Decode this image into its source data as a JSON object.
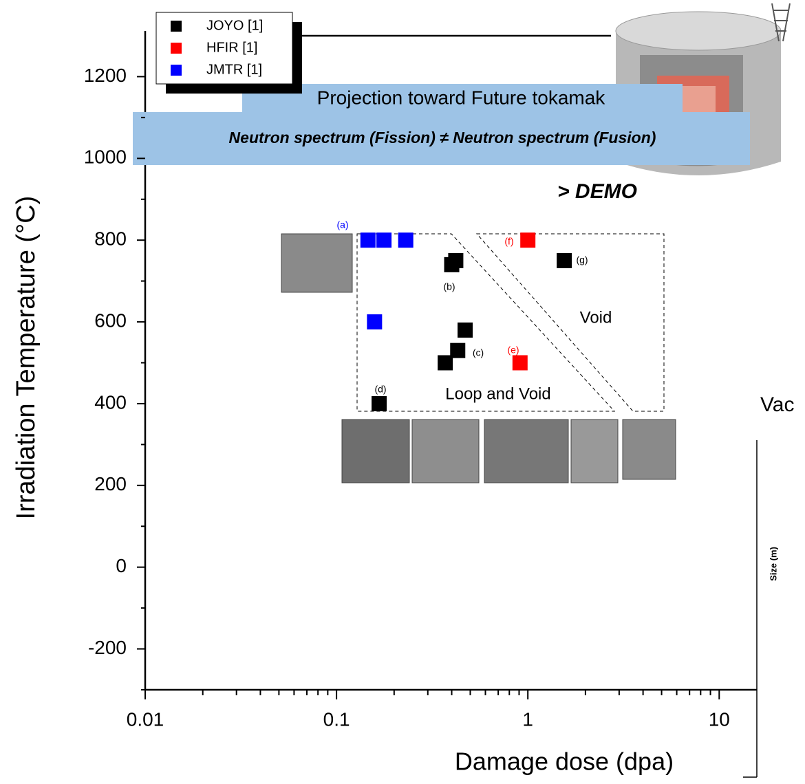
{
  "chart_data": {
    "type": "scatter",
    "title": "Projection toward Future tokamak",
    "subtitle": "Neutron spectrum (Fission) ≠ Neutron spectrum (Fusion)",
    "annotation": "> DEMO",
    "region_labels": [
      "Void",
      "Loop and Void"
    ],
    "point_labels": [
      "(a)",
      "(b)",
      "(c)",
      "(d)",
      "(e)",
      "(f)",
      "(g)"
    ],
    "x_label": "Damage dose (dpa)",
    "y_label": "Irradiation Temperature (°C)",
    "log_x": true,
    "xlim": [
      0.01,
      20
    ],
    "ylim": [
      -300,
      1300
    ],
    "xticks": [
      0.01,
      0.1,
      1,
      10
    ],
    "xminorticks": [
      0.02,
      0.03,
      0.04,
      0.05,
      0.06,
      0.07,
      0.08,
      0.09,
      0.2,
      0.3,
      0.4,
      0.5,
      0.6,
      0.7,
      0.8,
      0.9,
      2,
      3,
      4,
      5,
      6,
      7,
      8,
      9
    ],
    "yticks": [
      -200,
      0,
      200,
      400,
      600,
      800,
      1000,
      1200
    ],
    "yminorticks": [
      -300,
      -100,
      100,
      300,
      500,
      700,
      900,
      1100
    ],
    "legend": "top-left",
    "series": [
      {
        "name": "JOYO [1]",
        "color": "#000000",
        "x": [
          0.42,
          0.4,
          0.47,
          0.43,
          0.37,
          0.167,
          1.55
        ],
        "values": [
          750,
          740,
          580,
          530,
          500,
          400,
          750
        ]
      },
      {
        "name": "HFIR [1]",
        "color": "#ff0000",
        "x": [
          1.0,
          0.91
        ],
        "values": [
          800,
          500
        ]
      },
      {
        "name": "JMTR [1]",
        "color": "#0000ff",
        "x": [
          0.146,
          0.177,
          0.23,
          0.158
        ],
        "values": [
          800,
          800,
          800,
          600
        ]
      }
    ],
    "inset_texts": [
      "Vac",
      "Size (m)"
    ]
  }
}
